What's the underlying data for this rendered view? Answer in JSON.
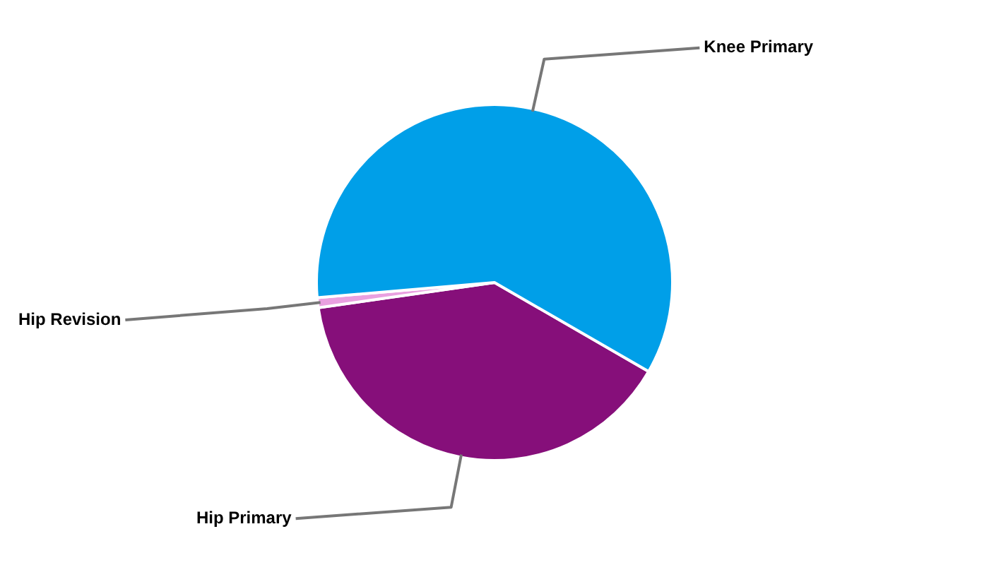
{
  "chart_data": {
    "type": "pie",
    "categories": [
      "Hip Primary",
      "Hip Revision",
      "Knee Primary"
    ],
    "values": [
      39.4,
      0.9,
      59.7
    ],
    "colors": [
      "#860f7a",
      "#e9a0e0",
      "#009fe8"
    ]
  }
}
